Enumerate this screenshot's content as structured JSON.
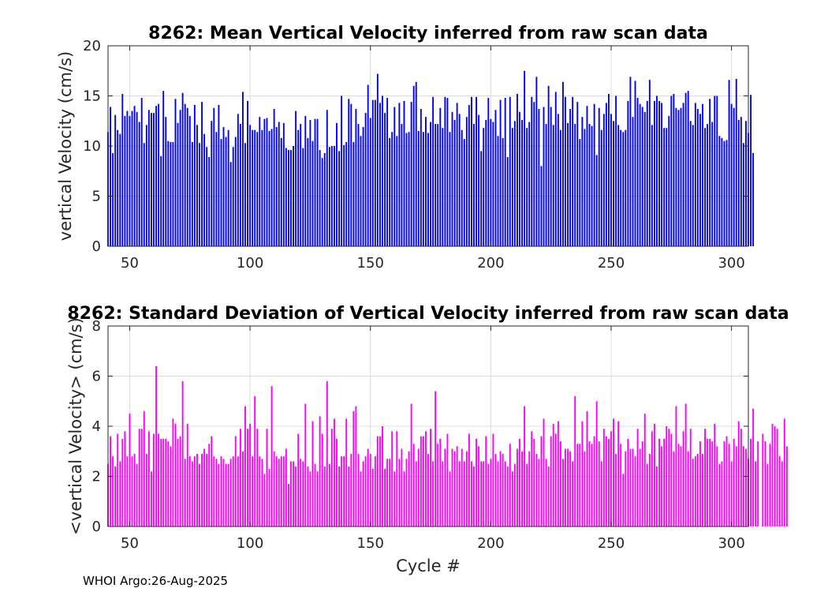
{
  "footer": "WHOI Argo:26-Aug-2025",
  "chart_data": [
    {
      "type": "bar",
      "title": "8262: Mean Vertical Velocity inferred from raw scan data",
      "xlabel": "",
      "ylabel": "vertical Velocity (cm/s)",
      "xlim": [
        41,
        307
      ],
      "ylim": [
        0,
        20
      ],
      "xticks": [
        50,
        100,
        150,
        200,
        250,
        300
      ],
      "yticks": [
        0,
        5,
        10,
        15,
        20
      ],
      "grid": true,
      "color": "#0000ff",
      "x_start": 41,
      "values": [
        11.4,
        13.9,
        9.3,
        13.1,
        11.6,
        11.2,
        15.2,
        13.0,
        13.5,
        13.0,
        13.5,
        14.0,
        13.4,
        12.4,
        14.8,
        10.3,
        12.1,
        13.6,
        13.3,
        13.3,
        14.0,
        14.2,
        9.0,
        15.5,
        12.9,
        10.5,
        10.4,
        10.4,
        14.7,
        12.3,
        13.6,
        15.3,
        14.2,
        13.8,
        13.0,
        10.4,
        14.1,
        12.1,
        10.3,
        14.4,
        11.2,
        9.9,
        8.9,
        12.5,
        13.8,
        11.4,
        14.1,
        10.7,
        11.9,
        10.9,
        11.6,
        8.4,
        9.9,
        10.9,
        13.2,
        12.2,
        15.4,
        10.3,
        14.5,
        12.1,
        11.6,
        11.6,
        11.4,
        12.9,
        11.6,
        12.7,
        12.8,
        11.5,
        11.7,
        13.7,
        11.9,
        12.4,
        10.8,
        12.3,
        9.8,
        9.6,
        9.6,
        10.0,
        13.5,
        11.6,
        12.2,
        9.8,
        13.0,
        10.8,
        12.6,
        10.5,
        12.7,
        12.7,
        9.6,
        8.8,
        9.3,
        13.6,
        9.9,
        10.0,
        10.0,
        12.3,
        9.5,
        15.0,
        10.1,
        10.4,
        14.7,
        14.2,
        10.4,
        13.7,
        12.2,
        11.0,
        11.9,
        13.3,
        16.1,
        12.8,
        14.6,
        14.6,
        17.2,
        14.3,
        15.0,
        13.3,
        14.8,
        10.8,
        11.4,
        13.9,
        11.0,
        14.3,
        12.2,
        14.5,
        11.3,
        11.4,
        14.4,
        16.0,
        16.4,
        11.5,
        13.7,
        11.4,
        12.9,
        11.3,
        12.4,
        14.9,
        12.2,
        12.2,
        13.8,
        11.8,
        14.9,
        14.8,
        11.4,
        13.4,
        12.6,
        14.3,
        13.2,
        11.6,
        10.7,
        12.9,
        14.1,
        14.9,
        12.2,
        14.9,
        13.1,
        9.5,
        11.8,
        12.6,
        14.8,
        12.7,
        12.4,
        13.6,
        11.0,
        14.6,
        10.8,
        14.8,
        8.9,
        14.9,
        11.8,
        12.5,
        15.2,
        13.4,
        12.6,
        17.5,
        11.8,
        12.4,
        14.9,
        14.4,
        16.9,
        13.7,
        8.0,
        13.9,
        12.2,
        16.0,
        13.9,
        12.1,
        15.4,
        13.2,
        11.6,
        16.4,
        14.9,
        12.3,
        13.7,
        14.9,
        12.2,
        14.4,
        10.7,
        12.9,
        11.7,
        14.0,
        12.2,
        12.0,
        14.2,
        9.1,
        13.8,
        11.6,
        13.2,
        14.3,
        15.2,
        13.2,
        12.5,
        15.0,
        12.1,
        11.6,
        11.4,
        11.6,
        14.5,
        16.9,
        12.9,
        16.5,
        14.8,
        14.2,
        13.9,
        13.4,
        14.5,
        16.6,
        12.1,
        14.5,
        15.0,
        14.5,
        14.3,
        11.8,
        11.8,
        13.0,
        15.0,
        15.2,
        13.8,
        13.6,
        13.8,
        14.3,
        15.3,
        15.5,
        12.5,
        12.1,
        14.3,
        13.7,
        13.2,
        14.2,
        11.8,
        12.2,
        14.7,
        12.4,
        15.0,
        15.0,
        11.0,
        10.8,
        10.5,
        10.6,
        16.6,
        14.2,
        13.8,
        16.7,
        12.6,
        12.9,
        10.3,
        12.5,
        11.3,
        15.1,
        9.3
      ]
    },
    {
      "type": "bar",
      "title": "8262: Standard Deviation of Vertical Velocity inferred from raw scan data",
      "xlabel": "Cycle #",
      "ylabel": "<vertical Velocity> (cm/s)",
      "xlim": [
        41,
        307
      ],
      "ylim": [
        0,
        8
      ],
      "xticks": [
        50,
        100,
        150,
        200,
        250,
        300
      ],
      "yticks": [
        0,
        2,
        4,
        6,
        8
      ],
      "grid": true,
      "color": "#ff00ff",
      "x_start": 41,
      "values": [
        2.5,
        3.6,
        2.8,
        2.4,
        3.7,
        2.6,
        3.5,
        3.8,
        2.8,
        4.5,
        2.8,
        2.9,
        2.5,
        3.9,
        3.9,
        4.6,
        2.9,
        3.8,
        2.2,
        3.7,
        6.4,
        3.7,
        3.5,
        3.5,
        3.5,
        3.4,
        3.2,
        4.3,
        4.1,
        3.5,
        3.6,
        5.8,
        2.7,
        4.1,
        2.8,
        2.6,
        2.8,
        2.9,
        2.5,
        2.9,
        3.1,
        2.9,
        3.3,
        3.6,
        2.8,
        2.7,
        2.5,
        2.8,
        2.7,
        2.5,
        2.5,
        2.7,
        2.8,
        3.6,
        2.8,
        3.9,
        3.0,
        4.8,
        3.9,
        4.1,
        2.8,
        5.2,
        3.9,
        2.8,
        2.7,
        2.1,
        3.9,
        2.3,
        5.6,
        3.0,
        2.8,
        2.7,
        2.8,
        2.8,
        3.1,
        1.7,
        2.6,
        2.6,
        2.4,
        3.7,
        2.7,
        2.6,
        4.9,
        2.4,
        2.2,
        4.2,
        2.5,
        2.2,
        4.4,
        3.7,
        2.4,
        5.8,
        2.5,
        3.9,
        4.3,
        3.5,
        2.4,
        2.8,
        2.8,
        4.3,
        2.4,
        2.9,
        4.6,
        4.8,
        2.9,
        2.2,
        2.6,
        2.8,
        3.1,
        2.9,
        2.3,
        2.8,
        3.6,
        3.6,
        4.0,
        2.3,
        2.7,
        2.7,
        3.8,
        2.2,
        3.8,
        2.7,
        3.1,
        2.2,
        2.7,
        3.0,
        4.9,
        3.3,
        2.6,
        3.1,
        3.6,
        3.6,
        3.8,
        2.9,
        3.9,
        2.6,
        5.4,
        3.3,
        3.5,
        2.6,
        3.1,
        3.7,
        2.2,
        3.1,
        3.0,
        3.2,
        2.6,
        3.1,
        2.6,
        3.0,
        3.7,
        2.6,
        2.4,
        3.5,
        3.2,
        2.6,
        2.6,
        3.6,
        2.5,
        2.7,
        3.7,
        2.9,
        2.6,
        3.0,
        2.9,
        2.6,
        2.4,
        3.3,
        2.2,
        2.5,
        3.1,
        3.5,
        3.0,
        4.8,
        2.5,
        3.0,
        3.8,
        3.5,
        2.9,
        2.7,
        3.6,
        4.3,
        2.7,
        2.4,
        3.6,
        4.1,
        3.7,
        4.2,
        3.4,
        2.7,
        3.1,
        3.1,
        3.0,
        2.6,
        5.2,
        3.3,
        3.3,
        4.2,
        3.0,
        4.6,
        3.4,
        3.3,
        3.6,
        5.0,
        3.4,
        2.6,
        3.9,
        3.6,
        3.5,
        3.8,
        4.3,
        2.9,
        4.2,
        3.3,
        2.1,
        3.0,
        3.5,
        3.1,
        3.1,
        2.8,
        3.9,
        3.1,
        3.4,
        4.5,
        2.5,
        2.9,
        3.8,
        4.1,
        2.4,
        3.5,
        3.2,
        3.5,
        4.0,
        3.9,
        3.7,
        3.0,
        4.8,
        3.3,
        3.2,
        3.8,
        4.9,
        3.0,
        3.9,
        2.7,
        2.8,
        2.9,
        3.4,
        2.9,
        3.9,
        3.5,
        3.5,
        3.4,
        4.1,
        3.2,
        2.5,
        2.6,
        3.4,
        3.6,
        3.3,
        2.6,
        3.5,
        3.2,
        4.2,
        3.9,
        3.2,
        3.1,
        2.7,
        3.5,
        4.7,
        2.6,
        3.4,
        0,
        3.7,
        3.4,
        2.5,
        3.3,
        4.1,
        4.0,
        3.9,
        2.8,
        2.6,
        4.3,
        3.2
      ]
    }
  ]
}
